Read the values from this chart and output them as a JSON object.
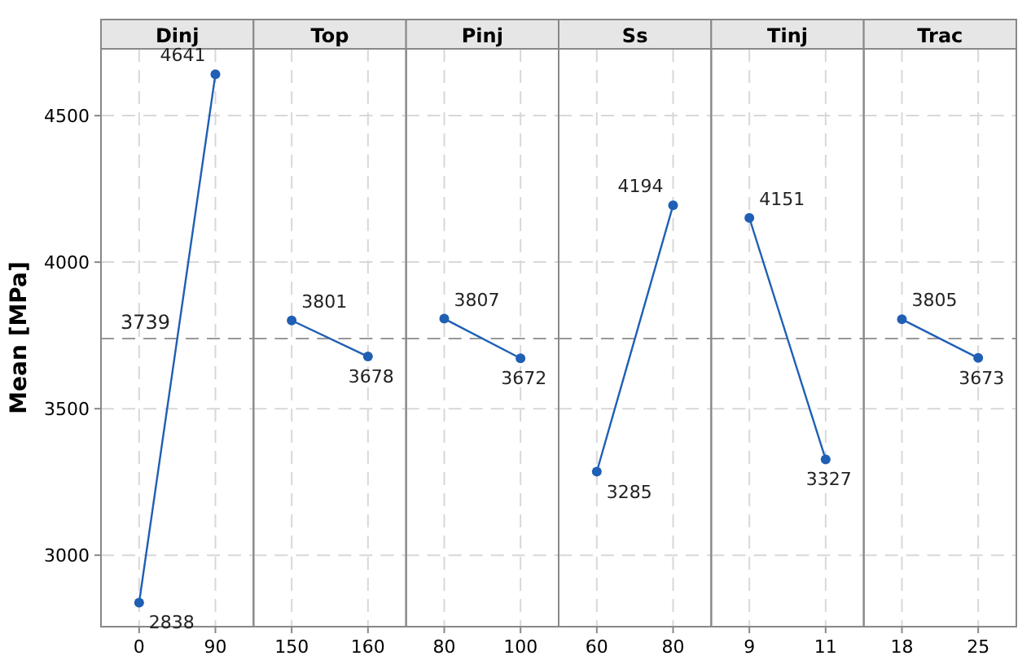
{
  "chart_data": [
    {
      "type": "line",
      "title": "Dinj",
      "ylabel": "Mean [MPa]",
      "categories": [
        "0",
        "90"
      ],
      "values": [
        2838,
        4641
      ],
      "color": "#1f5fb4",
      "ylim": [
        2756,
        4728
      ],
      "yticks": [
        3000,
        3500,
        4000,
        4500
      ],
      "grid": true,
      "marker": "circle",
      "data_labels": true,
      "ref_lines": [
        {
          "axis": "y",
          "value": 3739,
          "label": "3739"
        }
      ]
    },
    {
      "type": "line",
      "title": "Top",
      "categories": [
        "150",
        "160"
      ],
      "values": [
        3801,
        3678
      ],
      "color": "#1f5fb4",
      "ylim": [
        2756,
        4728
      ],
      "yticks": [
        3000,
        3500,
        4000,
        4500
      ],
      "grid": true,
      "marker": "circle",
      "data_labels": true,
      "tick_labels": "x",
      "ref_lines": [
        {
          "axis": "y",
          "value": 3739
        }
      ]
    },
    {
      "type": "line",
      "title": "Pinj",
      "categories": [
        "80",
        "100"
      ],
      "values": [
        3807,
        3672
      ],
      "color": "#1f5fb4",
      "ylim": [
        2756,
        4728
      ],
      "yticks": [
        3000,
        3500,
        4000,
        4500
      ],
      "grid": true,
      "marker": "circle",
      "data_labels": true,
      "tick_labels": "x",
      "ref_lines": [
        {
          "axis": "y",
          "value": 3739
        }
      ]
    },
    {
      "type": "line",
      "title": "Ss",
      "categories": [
        "60",
        "80"
      ],
      "values": [
        3285,
        4194
      ],
      "color": "#1f5fb4",
      "ylim": [
        2756,
        4728
      ],
      "yticks": [
        3000,
        3500,
        4000,
        4500
      ],
      "grid": true,
      "marker": "circle",
      "data_labels": true,
      "tick_labels": "x",
      "ref_lines": [
        {
          "axis": "y",
          "value": 3739
        }
      ]
    },
    {
      "type": "line",
      "title": "Tinj",
      "categories": [
        "9",
        "11"
      ],
      "values": [
        4151,
        3327
      ],
      "color": "#1f5fb4",
      "ylim": [
        2756,
        4728
      ],
      "yticks": [
        3000,
        3500,
        4000,
        4500
      ],
      "grid": true,
      "marker": "circle",
      "data_labels": true,
      "tick_labels": "x",
      "ref_lines": [
        {
          "axis": "y",
          "value": 3739
        }
      ]
    },
    {
      "type": "line",
      "title": "Trac",
      "categories": [
        "18",
        "25"
      ],
      "values": [
        3805,
        3673
      ],
      "color": "#1f5fb4",
      "ylim": [
        2756,
        4728
      ],
      "yticks": [
        3000,
        3500,
        4000,
        4500
      ],
      "grid": true,
      "marker": "circle",
      "data_labels": true,
      "tick_labels": "x",
      "ref_lines": [
        {
          "axis": "y",
          "value": 3739
        }
      ]
    }
  ]
}
